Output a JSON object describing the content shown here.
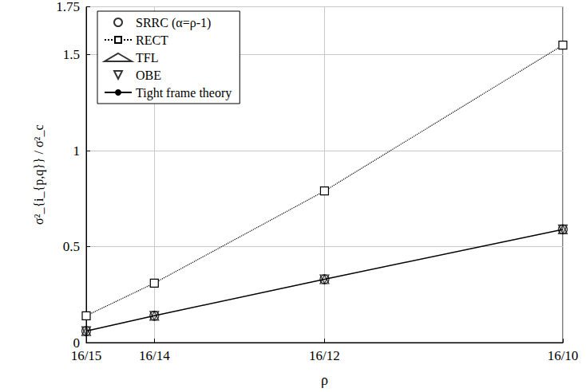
{
  "chart_data": {
    "type": "line",
    "x_label": "ρ",
    "y_label": "σ²_{i_{p,q}} / σ²_c",
    "x": [
      1.0667,
      1.1429,
      1.3333,
      1.6
    ],
    "xlim": [
      1.0667,
      1.6
    ],
    "xticks": [
      {
        "value": 1.0667,
        "label": "16/15"
      },
      {
        "value": 1.1429,
        "label": "16/14"
      },
      {
        "value": 1.3333,
        "label": "16/12"
      },
      {
        "value": 1.6,
        "label": "16/10"
      }
    ],
    "ylim": [
      0,
      1.75
    ],
    "yticks": [
      0,
      0.5,
      1,
      1.5
    ],
    "grid": true,
    "legend": "top-left",
    "series": [
      {
        "name": "SRRC (α=ρ-1)",
        "type": "scatter",
        "marker": "circle",
        "color": "#000000",
        "values": [
          0.06,
          0.14,
          0.33,
          0.59
        ]
      },
      {
        "name": "RECT",
        "type": "line",
        "marker": "square",
        "line_style": "dotted",
        "color": "#000000",
        "values": [
          0.14,
          0.31,
          0.79,
          1.55
        ]
      },
      {
        "name": "TFL",
        "type": "scatter",
        "marker": "triangle",
        "color": "#000000",
        "values": [
          0.06,
          0.14,
          0.33,
          0.59
        ]
      },
      {
        "name": "OBE",
        "type": "scatter",
        "marker": "triangle_down",
        "color": "#000000",
        "values": [
          0.06,
          0.14,
          0.33,
          0.59
        ]
      },
      {
        "name": "Tight frame theory",
        "type": "line",
        "line_style": "solid",
        "color": "#000000",
        "values": [
          0.06,
          0.14,
          0.33,
          0.59
        ]
      }
    ]
  }
}
